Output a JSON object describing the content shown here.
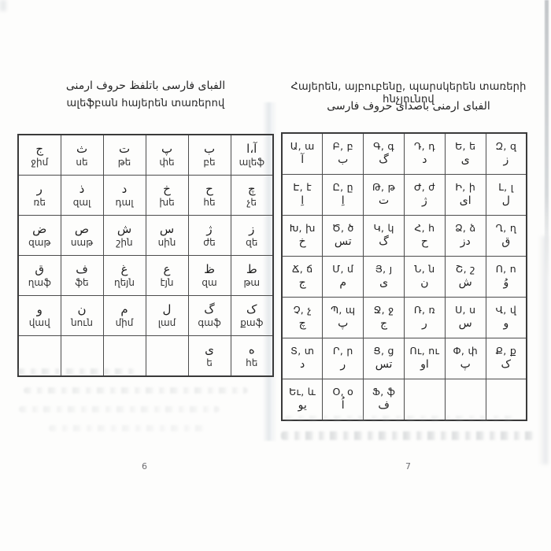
{
  "left_page": {
    "title_fa": "الفبای فارسی باتلفظ حروف ارمنی",
    "title_hy": "ալեֆբան հայերեն տառերով",
    "page_number": "6",
    "table": {
      "description": "persian-letter-top, armenian-transliteration-bottom",
      "rows": [
        [
          {
            "fa": "ج",
            "hy": "ջիմ"
          },
          {
            "fa": "ث",
            "hy": "սե"
          },
          {
            "fa": "ت",
            "hy": "թե"
          },
          {
            "fa": "پ",
            "hy": "փե"
          },
          {
            "fa": "ب",
            "hy": "բե"
          },
          {
            "fa": "آ،ا",
            "hy": "ալեֆ"
          }
        ],
        [
          {
            "fa": "ر",
            "hy": "ռե"
          },
          {
            "fa": "ذ",
            "hy": "զալ"
          },
          {
            "fa": "د",
            "hy": "դալ"
          },
          {
            "fa": "خ",
            "hy": "խե"
          },
          {
            "fa": "ح",
            "hy": "հե"
          },
          {
            "fa": "چ",
            "hy": "չե"
          }
        ],
        [
          {
            "fa": "ض",
            "hy": "զաթ"
          },
          {
            "fa": "ص",
            "hy": "սաթ"
          },
          {
            "fa": "ش",
            "hy": "շին"
          },
          {
            "fa": "س",
            "hy": "սին"
          },
          {
            "fa": "ژ",
            "hy": "ժե"
          },
          {
            "fa": "ز",
            "hy": "զե"
          }
        ],
        [
          {
            "fa": "ق",
            "hy": "ղաֆ"
          },
          {
            "fa": "ف",
            "hy": "ֆե"
          },
          {
            "fa": "غ",
            "hy": "ղեյն"
          },
          {
            "fa": "ع",
            "hy": "էյն"
          },
          {
            "fa": "ظ",
            "hy": "զա"
          },
          {
            "fa": "ط",
            "hy": "թա"
          }
        ],
        [
          {
            "fa": "و",
            "hy": "վավ"
          },
          {
            "fa": "ن",
            "hy": "նուն"
          },
          {
            "fa": "م",
            "hy": "միմ"
          },
          {
            "fa": "ل",
            "hy": "լամ"
          },
          {
            "fa": "گ",
            "hy": "գաֆ"
          },
          {
            "fa": "ک",
            "hy": "քաֆ"
          }
        ],
        [
          {
            "fa": "",
            "hy": ""
          },
          {
            "fa": "",
            "hy": ""
          },
          {
            "fa": "",
            "hy": ""
          },
          {
            "fa": "",
            "hy": ""
          },
          {
            "fa": "ی",
            "hy": "ե"
          },
          {
            "fa": "ه",
            "hy": "հե"
          }
        ]
      ]
    }
  },
  "right_page": {
    "title_hy": "Հայերեն, այբուբենը, պարսկերեն տառերի հնչյունով",
    "title_fa": "الفبای ارمنی باصدای حروف فارسی",
    "page_number": "7",
    "table": {
      "description": "armenian-letter-pair-top, persian-sound-bottom",
      "rows": [
        [
          {
            "hy": "Ա, ա",
            "fa": "آ"
          },
          {
            "hy": "Բ, բ",
            "fa": "ب"
          },
          {
            "hy": "Գ, գ",
            "fa": "گ"
          },
          {
            "hy": "Դ, դ",
            "fa": "د"
          },
          {
            "hy": "Ե, ե",
            "fa": "ی"
          },
          {
            "hy": "Զ, զ",
            "fa": "ز"
          }
        ],
        [
          {
            "hy": "Է, է",
            "fa": "اِ"
          },
          {
            "hy": "Ը, ը",
            "fa": "اِ"
          },
          {
            "hy": "Թ, թ",
            "fa": "ت"
          },
          {
            "hy": "Ժ, ժ",
            "fa": "ژ"
          },
          {
            "hy": "Ի, ի",
            "fa": "ای"
          },
          {
            "hy": "Լ, լ",
            "fa": "ل"
          }
        ],
        [
          {
            "hy": "Խ, խ",
            "fa": "خ"
          },
          {
            "hy": "Ծ, ծ",
            "fa": "تس"
          },
          {
            "hy": "Կ, կ",
            "fa": "گ"
          },
          {
            "hy": "Հ, հ",
            "fa": "ح"
          },
          {
            "hy": "Ձ, ձ",
            "fa": "دز"
          },
          {
            "hy": "Ղ, ղ",
            "fa": "ق"
          }
        ],
        [
          {
            "hy": "Ճ, ճ",
            "fa": "ج"
          },
          {
            "hy": "Մ, մ",
            "fa": "م"
          },
          {
            "hy": "Յ, յ",
            "fa": "ی"
          },
          {
            "hy": "Ն, ն",
            "fa": "ن"
          },
          {
            "hy": "Շ, շ",
            "fa": "ش"
          },
          {
            "hy": "Ո, ո",
            "fa": "وُ"
          }
        ],
        [
          {
            "hy": "Չ, չ",
            "fa": "چ"
          },
          {
            "hy": "Պ, պ",
            "fa": "پ"
          },
          {
            "hy": "Ջ, ջ",
            "fa": "ج"
          },
          {
            "hy": "Ռ, ռ",
            "fa": "ر"
          },
          {
            "hy": "Ս, ս",
            "fa": "س"
          },
          {
            "hy": "Վ, վ",
            "fa": "و"
          }
        ],
        [
          {
            "hy": "Տ, տ",
            "fa": "د"
          },
          {
            "hy": "Ր, ր",
            "fa": "ر"
          },
          {
            "hy": "Ց, ց",
            "fa": "تس"
          },
          {
            "hy": "Ու, ու",
            "fa": "او"
          },
          {
            "hy": "Փ, փ",
            "fa": "پ"
          },
          {
            "hy": "Ք, ք",
            "fa": "ک"
          }
        ],
        [
          {
            "hy": "Եւ, և",
            "fa": "یو"
          },
          {
            "hy": "Օ, օ",
            "fa": "اُ"
          },
          {
            "hy": "Ֆ, ֆ",
            "fa": "ف"
          },
          {
            "hy": "",
            "fa": ""
          },
          {
            "hy": "",
            "fa": ""
          },
          {
            "hy": "",
            "fa": ""
          }
        ]
      ]
    }
  }
}
